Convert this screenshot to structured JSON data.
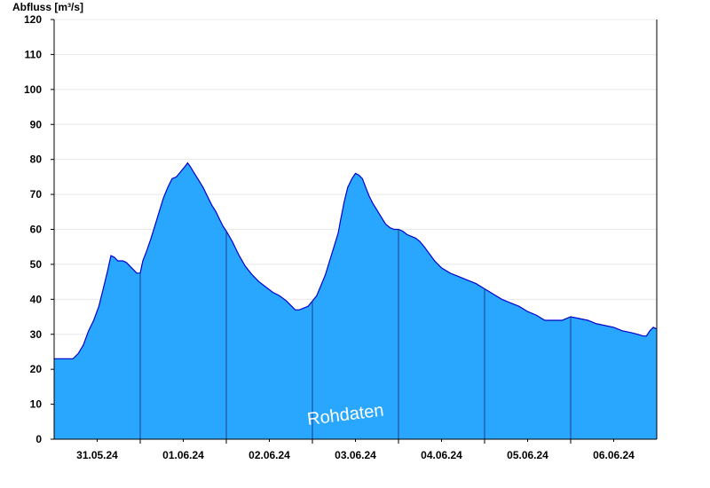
{
  "chart_data": {
    "type": "area",
    "ylabel": "Abfluss [m³/s]",
    "watermark": "Rohdaten",
    "ylim": [
      0,
      120
    ],
    "yticks": [
      0,
      10,
      20,
      30,
      40,
      50,
      60,
      70,
      80,
      90,
      100,
      110,
      120
    ],
    "xlim": [
      0,
      7
    ],
    "x_unit": "days from 31.05.24 00:00",
    "day_separators": [
      1,
      2,
      3,
      4,
      5,
      6
    ],
    "xticks": [
      {
        "label": "31.05.24",
        "x": 0.5
      },
      {
        "label": "01.06.24",
        "x": 1.5
      },
      {
        "label": "02.06.24",
        "x": 2.5
      },
      {
        "label": "03.06.24",
        "x": 3.5
      },
      {
        "label": "04.06.24",
        "x": 4.5
      },
      {
        "label": "05.06.24",
        "x": 5.5
      },
      {
        "label": "06.06.24",
        "x": 6.5
      }
    ],
    "grid": true,
    "colors": {
      "fill": "#29a7ff",
      "line": "#0000cc",
      "separator": "#1f3d8a",
      "grid": "#e8e8e8"
    },
    "series": [
      {
        "points": [
          [
            0.0,
            23.0
          ],
          [
            0.12,
            23.0
          ],
          [
            0.22,
            23.0
          ],
          [
            0.28,
            24.5
          ],
          [
            0.34,
            27.0
          ],
          [
            0.4,
            31.0
          ],
          [
            0.46,
            34.0
          ],
          [
            0.52,
            38.0
          ],
          [
            0.57,
            43.0
          ],
          [
            0.62,
            48.0
          ],
          [
            0.66,
            52.5
          ],
          [
            0.7,
            52.0
          ],
          [
            0.74,
            51.0
          ],
          [
            0.8,
            51.0
          ],
          [
            0.84,
            50.5
          ],
          [
            0.88,
            49.5
          ],
          [
            0.92,
            48.5
          ],
          [
            0.96,
            47.5
          ],
          [
            1.0,
            47.5
          ],
          [
            1.03,
            51.0
          ],
          [
            1.07,
            53.5
          ],
          [
            1.12,
            57.0
          ],
          [
            1.17,
            61.0
          ],
          [
            1.22,
            65.0
          ],
          [
            1.27,
            69.0
          ],
          [
            1.32,
            72.0
          ],
          [
            1.37,
            74.5
          ],
          [
            1.42,
            75.0
          ],
          [
            1.47,
            76.5
          ],
          [
            1.52,
            78.0
          ],
          [
            1.55,
            79.0
          ],
          [
            1.58,
            78.0
          ],
          [
            1.63,
            76.0
          ],
          [
            1.68,
            74.0
          ],
          [
            1.73,
            72.0
          ],
          [
            1.78,
            69.5
          ],
          [
            1.83,
            67.0
          ],
          [
            1.88,
            65.0
          ],
          [
            1.92,
            63.0
          ],
          [
            1.96,
            61.0
          ],
          [
            2.0,
            59.5
          ],
          [
            2.07,
            56.5
          ],
          [
            2.15,
            52.5
          ],
          [
            2.22,
            49.5
          ],
          [
            2.3,
            47.0
          ],
          [
            2.38,
            45.0
          ],
          [
            2.46,
            43.5
          ],
          [
            2.54,
            42.0
          ],
          [
            2.62,
            41.0
          ],
          [
            2.7,
            39.5
          ],
          [
            2.76,
            38.0
          ],
          [
            2.8,
            37.0
          ],
          [
            2.85,
            37.0
          ],
          [
            2.9,
            37.5
          ],
          [
            2.95,
            38.0
          ],
          [
            3.0,
            39.5
          ],
          [
            3.05,
            41.0
          ],
          [
            3.1,
            44.0
          ],
          [
            3.15,
            47.0
          ],
          [
            3.2,
            51.0
          ],
          [
            3.25,
            55.0
          ],
          [
            3.3,
            59.0
          ],
          [
            3.33,
            63.0
          ],
          [
            3.37,
            68.0
          ],
          [
            3.41,
            72.0
          ],
          [
            3.46,
            74.5
          ],
          [
            3.5,
            76.0
          ],
          [
            3.54,
            75.5
          ],
          [
            3.58,
            74.5
          ],
          [
            3.62,
            72.0
          ],
          [
            3.66,
            69.5
          ],
          [
            3.7,
            67.5
          ],
          [
            3.75,
            65.5
          ],
          [
            3.8,
            63.5
          ],
          [
            3.85,
            61.5
          ],
          [
            3.9,
            60.5
          ],
          [
            3.95,
            60.0
          ],
          [
            4.0,
            60.0
          ],
          [
            4.05,
            59.5
          ],
          [
            4.1,
            58.5
          ],
          [
            4.15,
            58.0
          ],
          [
            4.2,
            57.5
          ],
          [
            4.25,
            56.5
          ],
          [
            4.3,
            55.0
          ],
          [
            4.36,
            53.0
          ],
          [
            4.42,
            51.0
          ],
          [
            4.5,
            49.0
          ],
          [
            4.6,
            47.5
          ],
          [
            4.7,
            46.5
          ],
          [
            4.8,
            45.5
          ],
          [
            4.9,
            44.5
          ],
          [
            5.0,
            43.0
          ],
          [
            5.1,
            41.5
          ],
          [
            5.2,
            40.0
          ],
          [
            5.3,
            39.0
          ],
          [
            5.4,
            38.0
          ],
          [
            5.5,
            36.5
          ],
          [
            5.6,
            35.5
          ],
          [
            5.7,
            34.0
          ],
          [
            5.8,
            34.0
          ],
          [
            5.9,
            34.0
          ],
          [
            6.0,
            35.0
          ],
          [
            6.1,
            34.5
          ],
          [
            6.2,
            34.0
          ],
          [
            6.3,
            33.0
          ],
          [
            6.4,
            32.5
          ],
          [
            6.5,
            32.0
          ],
          [
            6.6,
            31.0
          ],
          [
            6.7,
            30.5
          ],
          [
            6.78,
            30.0
          ],
          [
            6.84,
            29.5
          ],
          [
            6.88,
            29.5
          ],
          [
            6.92,
            31.0
          ],
          [
            6.96,
            32.0
          ],
          [
            7.0,
            31.5
          ]
        ]
      }
    ]
  }
}
